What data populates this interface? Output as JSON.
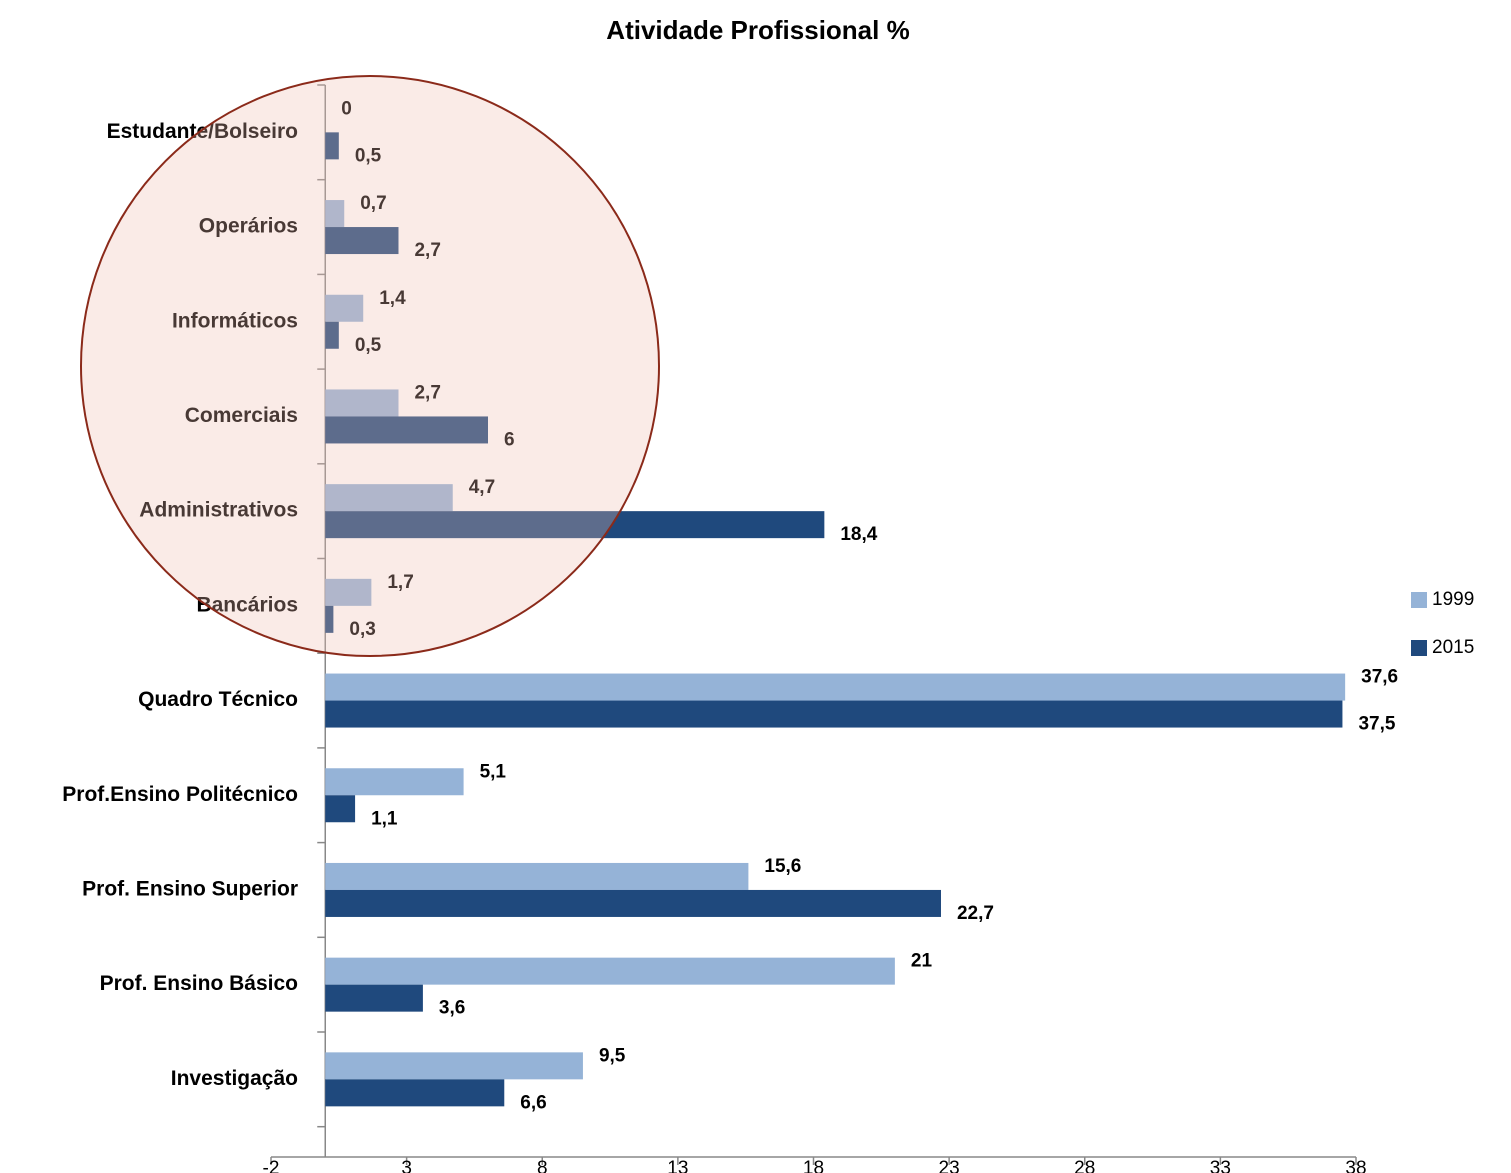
{
  "chart_data": {
    "type": "hbar",
    "title": "Atividade Profissional %",
    "categories": [
      "Estudante/Bolseiro",
      "Operários",
      "Informáticos",
      "Comerciais",
      "Administrativos",
      "Bancários",
      "Quadro Técnico",
      "Prof.Ensino Politécnico",
      "Prof. Ensino Superior",
      "Prof. Ensino Básico",
      "Investigação"
    ],
    "series": [
      {
        "name": "1999",
        "color": "#95b3d7",
        "values": [
          0,
          0.7,
          1.4,
          2.7,
          4.7,
          1.7,
          37.6,
          5.1,
          15.6,
          21,
          9.5
        ],
        "value_labels": [
          "0",
          "0,7",
          "1,4",
          "2,7",
          "4,7",
          "1,7",
          "37,6",
          "5,1",
          "15,6",
          "21",
          "9,5"
        ]
      },
      {
        "name": "2015",
        "color": "#1f497d",
        "values": [
          0.5,
          2.7,
          0.5,
          6,
          18.4,
          0.3,
          37.5,
          1.1,
          22.7,
          3.6,
          6.6
        ],
        "value_labels": [
          "0,5",
          "2,7",
          "0,5",
          "6",
          "18,4",
          "0,3",
          "37,5",
          "1,1",
          "22,7",
          "3,6",
          "6,6"
        ]
      }
    ],
    "xlim": [
      -2,
      38
    ],
    "xticks": [
      -2,
      3,
      8,
      13,
      18,
      23,
      28,
      33,
      38
    ],
    "legend": "right"
  }
}
